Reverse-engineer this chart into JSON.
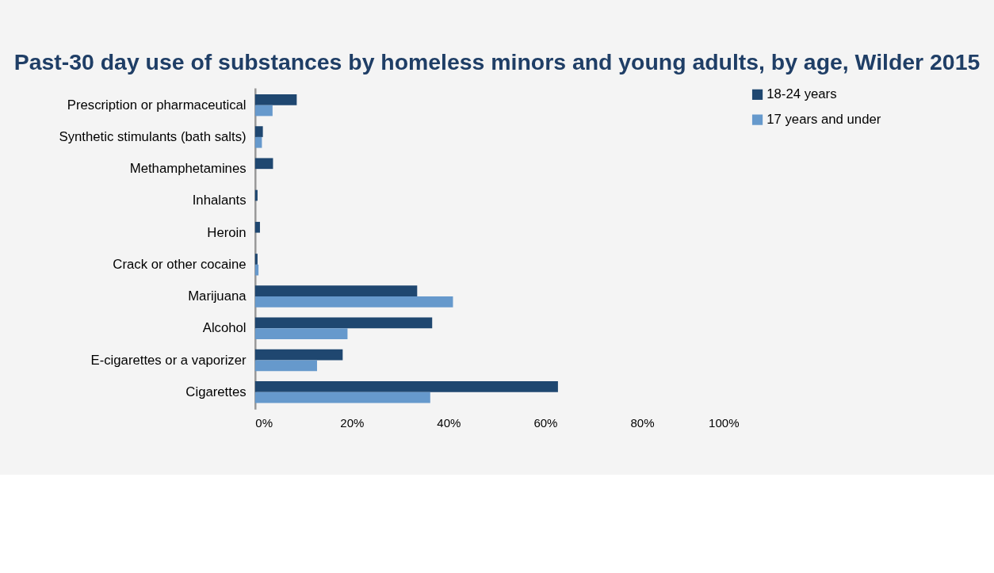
{
  "chart_data": {
    "type": "bar",
    "orientation": "horizontal",
    "title": "Past-30 day use of substances by homeless minors and young adults, by age, Wilder 2015",
    "categories": [
      "Prescription or pharmaceutical",
      "Synthetic stimulants (bath salts)",
      "Methamphetamines",
      "Inhalants",
      "Heroin",
      "Crack or other cocaine",
      "Marijuana",
      "Alcohol",
      "E-cigarettes or a vaporizer",
      "Cigarettes"
    ],
    "series": [
      {
        "name": "18-24 years",
        "color": "#1f4770",
        "values": [
          8.6,
          1.6,
          3.7,
          0.5,
          1.0,
          0.5,
          33.5,
          36.6,
          18.1,
          62.6
        ]
      },
      {
        "name": "17 years and under",
        "color": "#6699cc",
        "values": [
          3.6,
          1.4,
          null,
          null,
          null,
          0.7,
          40.9,
          19.1,
          12.8,
          36.2
        ]
      }
    ],
    "xlim": [
      0,
      100
    ],
    "xticks": [
      {
        "value": 0,
        "label": "0%"
      },
      {
        "value": 20,
        "label": "20%"
      },
      {
        "value": 40,
        "label": "40%"
      },
      {
        "value": 60,
        "label": "60%"
      },
      {
        "value": 80,
        "label": "80%"
      },
      {
        "value": 100,
        "label": "100%"
      }
    ],
    "grid": false,
    "legend": "right"
  }
}
